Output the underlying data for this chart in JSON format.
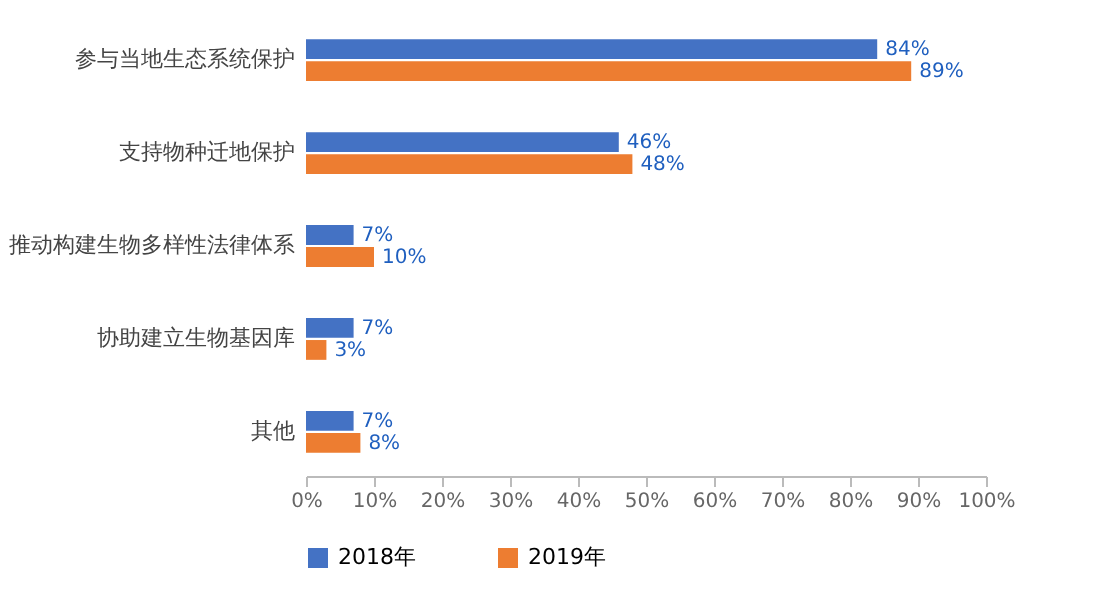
{
  "chart_data": {
    "type": "bar",
    "orientation": "horizontal",
    "categories": [
      "参与当地生态系统保护",
      "支持物种迁地保护",
      "推动构建生物多样性法律体系",
      "协助建立生物基因库",
      "其他"
    ],
    "series": [
      {
        "name": "2018年",
        "color": "#4472c4",
        "values": [
          84,
          46,
          7,
          7,
          7
        ],
        "value_labels": [
          "84%",
          "46%",
          "7%",
          "7%",
          "7%"
        ]
      },
      {
        "name": "2019年",
        "color": "#ed7d31",
        "values": [
          89,
          48,
          10,
          3,
          8
        ],
        "value_labels": [
          "89%",
          "48%",
          "10%",
          "3%",
          "8%"
        ]
      }
    ],
    "xlim": [
      0,
      100
    ],
    "xticks": [
      {
        "value": 0,
        "label": "0%"
      },
      {
        "value": 10,
        "label": "10%"
      },
      {
        "value": 20,
        "label": "20%"
      },
      {
        "value": 30,
        "label": "30%"
      },
      {
        "value": 40,
        "label": "40%"
      },
      {
        "value": 50,
        "label": "50%"
      },
      {
        "value": 60,
        "label": "60%"
      },
      {
        "value": 70,
        "label": "70%"
      },
      {
        "value": 80,
        "label": "80%"
      },
      {
        "value": 90,
        "label": "90%"
      },
      {
        "value": 100,
        "label": "100%"
      }
    ],
    "grid": false,
    "legend": "bottom"
  }
}
